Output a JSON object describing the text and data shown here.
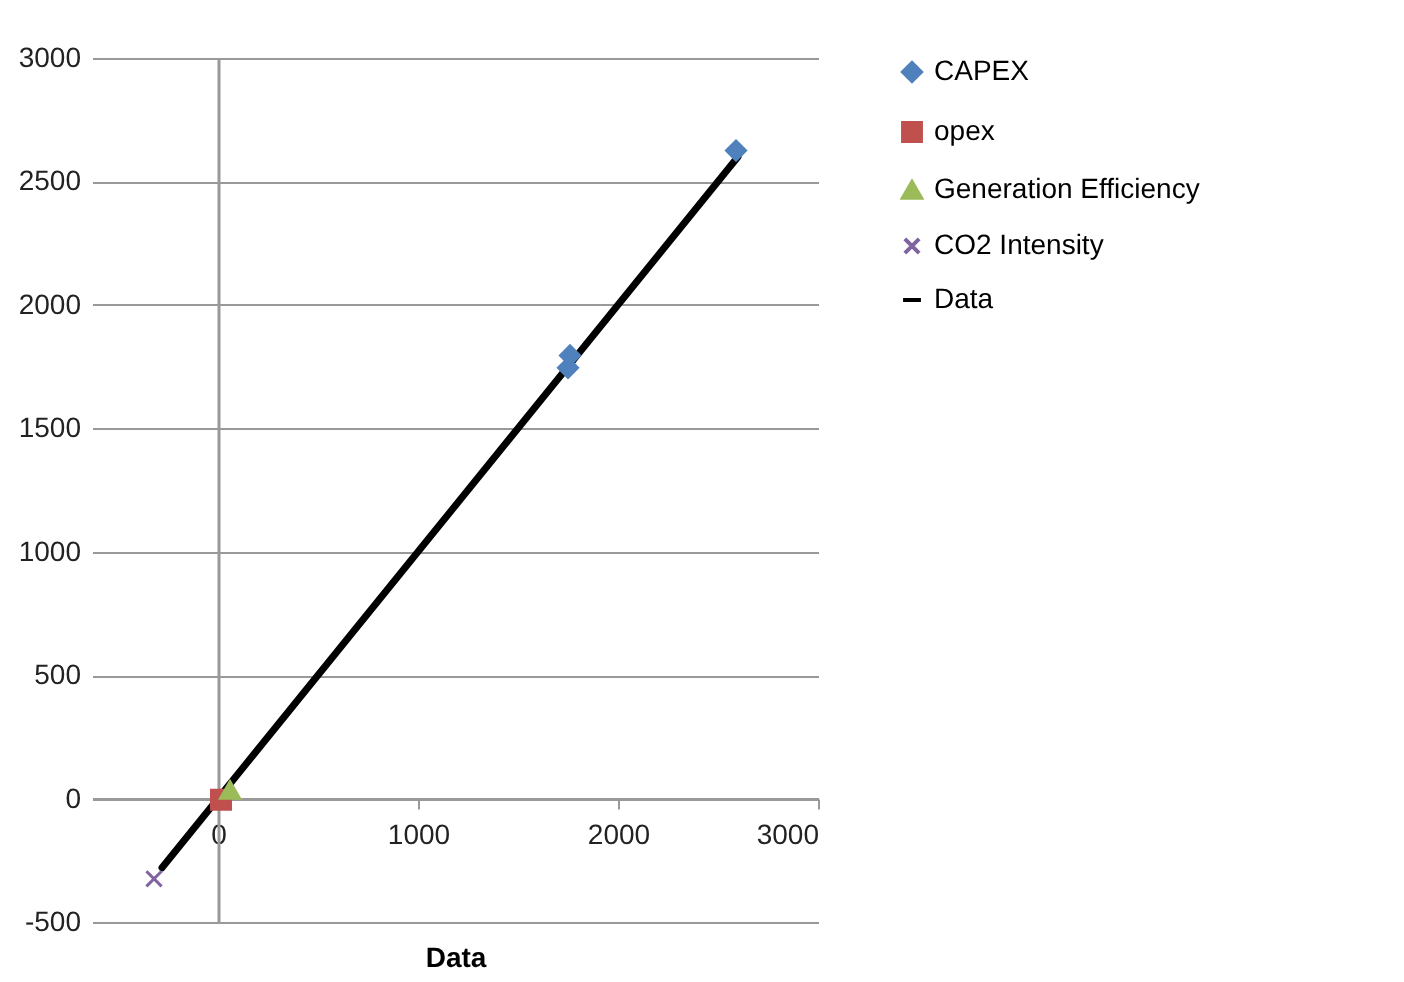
{
  "chart_data": {
    "type": "scatter",
    "xlabel": "Data",
    "xlim": [
      -630,
      3000
    ],
    "xticks": [
      0,
      1000,
      2000,
      3000
    ],
    "ylim": [
      -500,
      3000
    ],
    "yticks": [
      -500,
      0,
      500,
      1000,
      1500,
      2000,
      2500,
      3000
    ],
    "grid": "y",
    "legend": "right",
    "series": [
      {
        "name": "CAPEX",
        "color": "#4f81bd",
        "marker": "diamond",
        "x": [
          1750,
          1760,
          2590
        ],
        "values": [
          1745,
          1795,
          2625
        ]
      },
      {
        "name": "opex",
        "color": "#c0504d",
        "marker": "square",
        "x": [
          15
        ],
        "values": [
          -5
        ]
      },
      {
        "name": "Generation Efficiency",
        "color": "#9bbb59",
        "marker": "triangle",
        "x": [
          60
        ],
        "values": [
          35
        ]
      },
      {
        "name": "CO2 Intensity",
        "color": "#8064a2",
        "marker": "cross",
        "x": [
          -320
        ],
        "values": [
          -325
        ]
      },
      {
        "name": "Data",
        "type": "line",
        "color": "#000000",
        "marker": "none",
        "x": [
          -280,
          2600
        ],
        "values": [
          -280,
          2600
        ]
      }
    ]
  }
}
